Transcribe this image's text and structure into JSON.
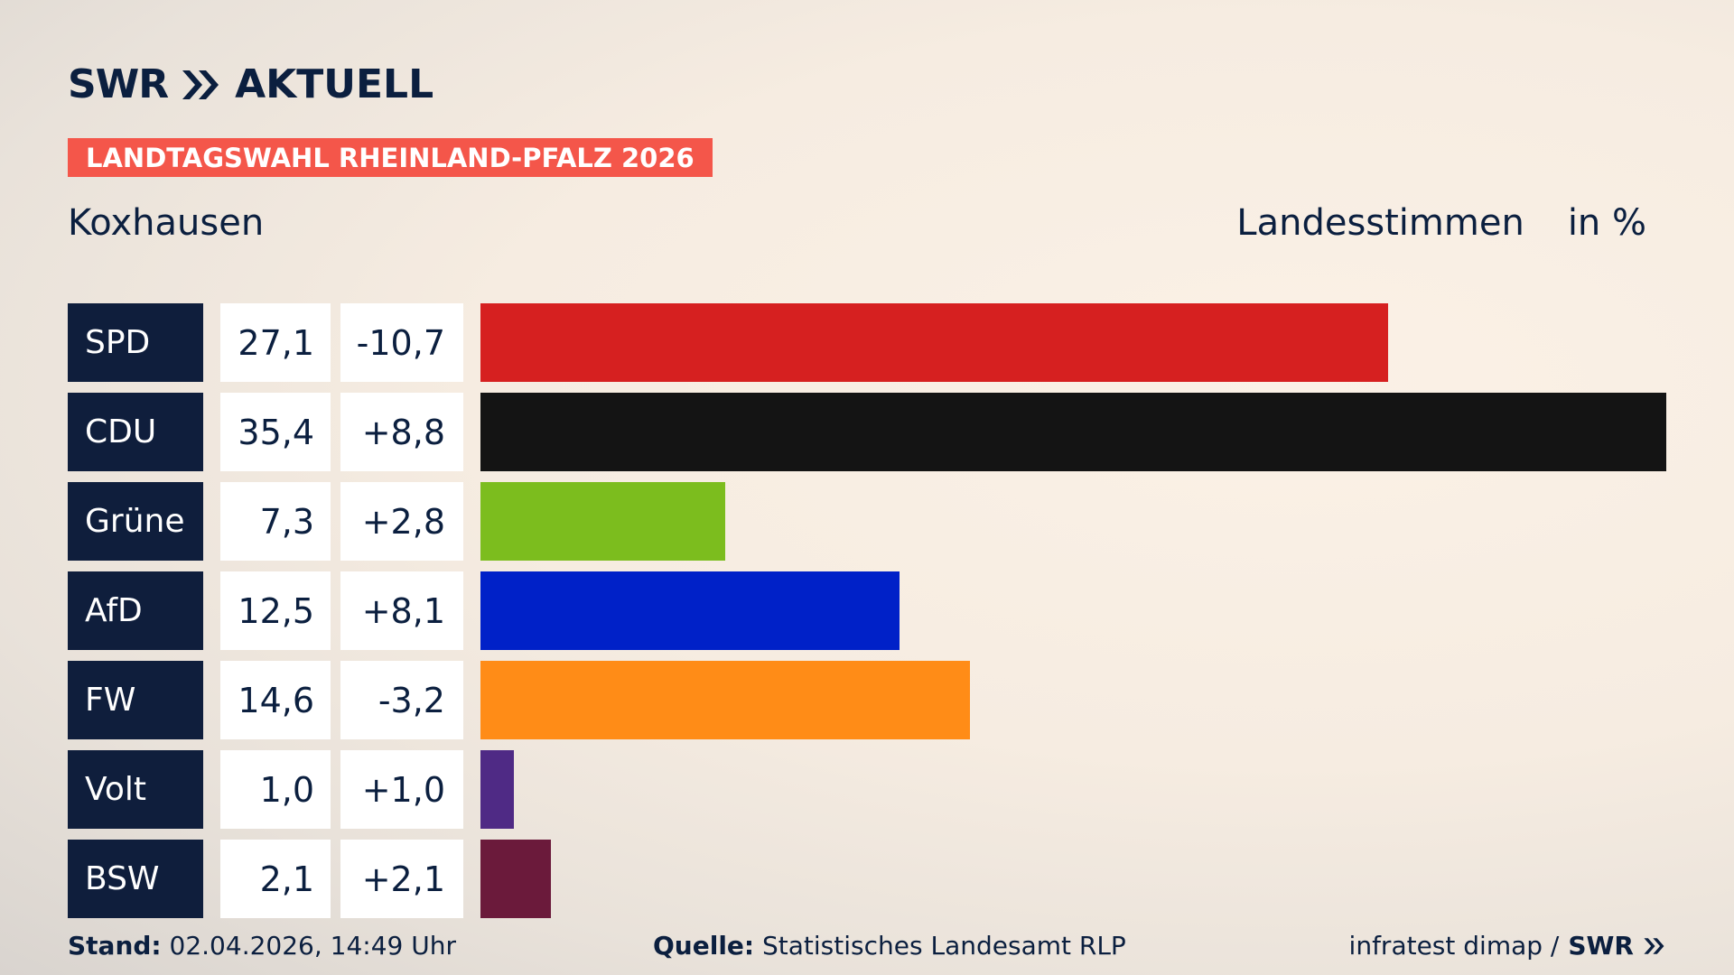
{
  "header": {
    "logo_swr": "SWR",
    "logo_aktuell": "AKTUELL",
    "banner": "LANDTAGSWAHL RHEINLAND-PFALZ 2026",
    "place": "Koxhausen",
    "metric": "Landesstimmen",
    "unit": "in %"
  },
  "chart_data": {
    "type": "bar",
    "orientation": "horizontal",
    "categories": [
      "SPD",
      "CDU",
      "Grüne",
      "AfD",
      "FW",
      "Volt",
      "BSW"
    ],
    "values": [
      27.1,
      35.4,
      7.3,
      12.5,
      14.6,
      1.0,
      2.1
    ],
    "values_label": [
      "27,1",
      "35,4",
      "7,3",
      "12,5",
      "14,6",
      "1,0",
      "2,1"
    ],
    "change_label": [
      "-10,7",
      "+8,8",
      "+2,8",
      "+8,1",
      "-3,2",
      "+1,0",
      "+2,1"
    ],
    "colors": [
      "#d62020",
      "#141414",
      "#7cbd1e",
      "#0021c8",
      "#ff8c17",
      "#4f2a85",
      "#6b1a3b"
    ],
    "xlim": [
      0,
      35.4
    ]
  },
  "footer": {
    "stand_label": "Stand:",
    "stand_value": "02.04.2026, 14:49 Uhr",
    "quelle_label": "Quelle:",
    "quelle_value": "Statistisches Landesamt RLP",
    "credit": "infratest dimap /",
    "credit_logo": "SWR"
  },
  "colors": {
    "navy": "#0f1e3c",
    "banner": "#f4564a"
  },
  "icons": {
    "logo_chevrons": "double-chevron-right-icon"
  }
}
